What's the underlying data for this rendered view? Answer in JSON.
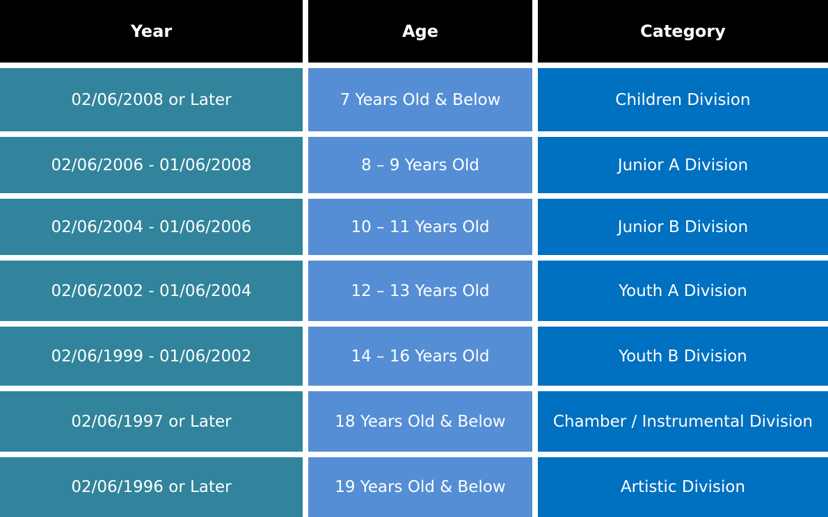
{
  "table": {
    "headers": [
      "Year",
      "Age",
      "Category"
    ],
    "rows": [
      {
        "year": "02/06/2008 or Later",
        "age": "7 Years Old & Below",
        "category": "Children Division"
      },
      {
        "year": "02/06/2006 - 01/06/2008",
        "age": "8 – 9 Years Old",
        "category": "Junior A Division"
      },
      {
        "year": "02/06/2004 - 01/06/2006",
        "age": "10 – 11 Years Old",
        "category": "Junior B Division"
      },
      {
        "year": "02/06/2002 - 01/06/2004",
        "age": "12 – 13 Years Old",
        "category": "Youth A Division"
      },
      {
        "year": "02/06/1999 - 01/06/2002",
        "age": "14 – 16 Years Old",
        "category": "Youth B Division"
      },
      {
        "year": "02/06/1997 or Later",
        "age": "18 Years Old & Below",
        "category": "Chamber / Instrumental Division"
      },
      {
        "year": "02/06/1996 or Later",
        "age": "19 Years Old & Below",
        "category": "Artistic Division"
      }
    ]
  },
  "colors": {
    "header_bg": "#000000",
    "year_col_bg": "#31849b",
    "age_col_bg": "#558ed5",
    "category_col_bg": "#0070c0",
    "text": "#ffffff"
  }
}
